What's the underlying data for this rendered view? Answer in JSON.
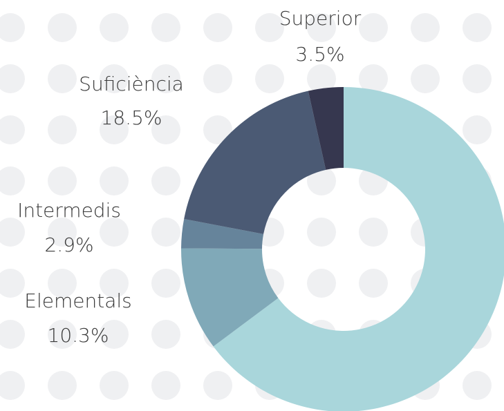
{
  "chart_data": {
    "type": "donut",
    "categories": [
      null,
      "Elementals",
      "Intermedis",
      "Suficiència",
      "Superior"
    ],
    "values": [
      64.8,
      10.3,
      2.9,
      18.5,
      3.5
    ],
    "value_labels": [
      null,
      "10.3%",
      "2.9%",
      "18.5%",
      "3.5%"
    ],
    "colors": [
      "#a9d6db",
      "#80a9b8",
      "#66849b",
      "#4b5a74",
      "#36374f"
    ]
  }
}
